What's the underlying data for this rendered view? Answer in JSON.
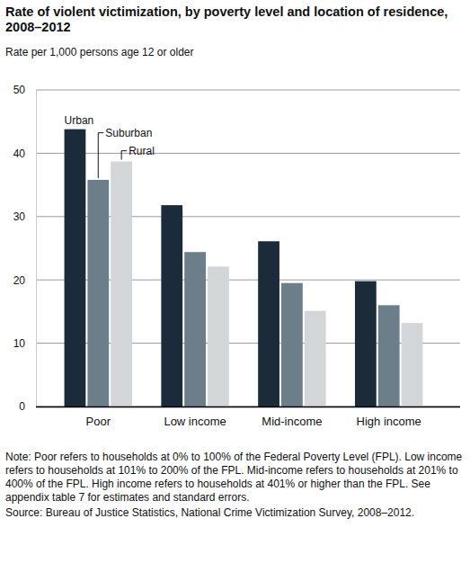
{
  "chart_data": {
    "type": "bar",
    "title": "Rate of violent victimization, by poverty level and location of residence, 2008–2012",
    "subtitle": "Rate per 1,000 persons age 12 or older",
    "categories": [
      "Poor",
      "Low income",
      "Mid-income",
      "High income"
    ],
    "series": [
      {
        "name": "Urban",
        "color": "#1c2b39",
        "values": [
          43.8,
          31.8,
          26.1,
          19.8
        ]
      },
      {
        "name": "Suburban",
        "color": "#6b7e8a",
        "values": [
          35.8,
          24.4,
          19.5,
          16.0
        ]
      },
      {
        "name": "Rural",
        "color": "#d2d6d9",
        "values": [
          38.7,
          22.1,
          15.1,
          13.2
        ]
      }
    ],
    "ylim": [
      0,
      50
    ],
    "yticks": [
      0,
      10,
      20,
      30,
      40,
      50
    ],
    "grid": true,
    "annotations": [
      "Note: Poor refers to households at 0% to 100% of the Federal Poverty Level (FPL). Low income refers to households at 101% to 200% of the FPL. Mid-income refers to households at 201% to 400% of the FPL. High income refers to households at 401% or higher than the FPL. See appendix table 7 for estimates and standard errors.",
      "Source: Bureau of Justice Statistics, National Crime Victimization Survey, 2008–2012."
    ]
  }
}
